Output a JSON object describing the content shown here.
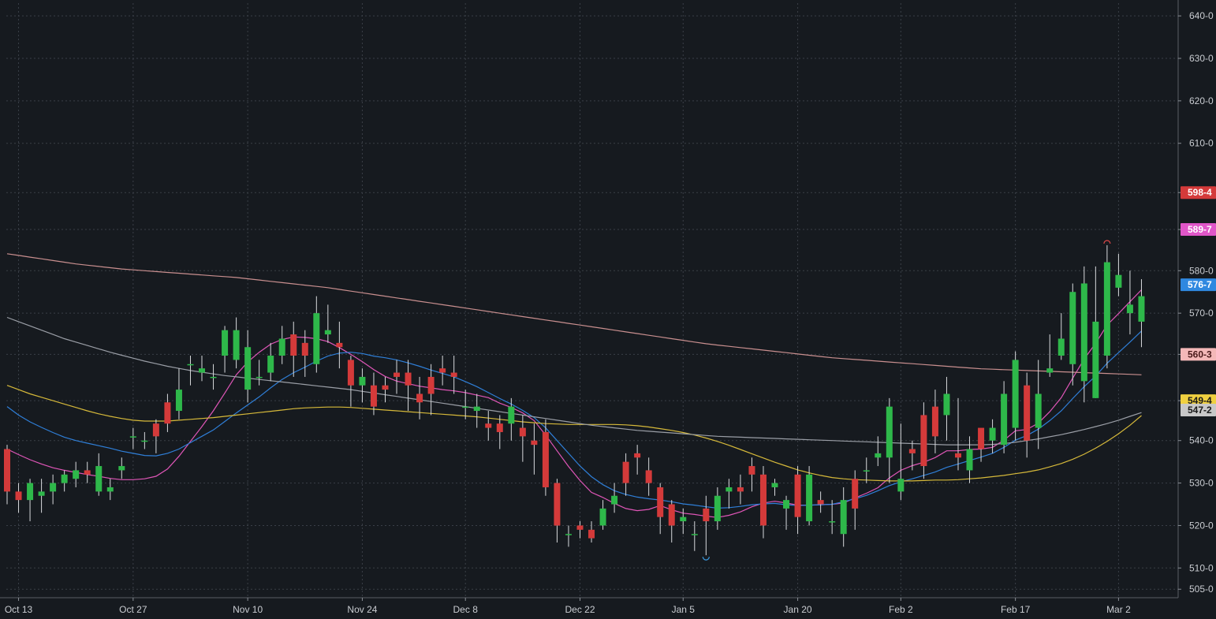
{
  "chart_data": {
    "type": "candlestick",
    "title": "",
    "xlabel": "",
    "ylabel": "",
    "grid": true,
    "x_ticks": [
      "Oct 13",
      "Oct 27",
      "Nov 10",
      "Nov 24",
      "Dec 8",
      "Dec 22",
      "Jan 5",
      "Jan 20",
      "Feb 2",
      "Feb 17",
      "Mar 2"
    ],
    "x_tick_index": [
      1,
      11,
      21,
      31,
      40,
      50,
      59,
      69,
      78,
      88,
      97
    ],
    "y_ticks": [
      "505-0",
      "510-0",
      "520-0",
      "530-0",
      "540-0",
      "549-4",
      "560-3",
      "570-0",
      "580-0",
      "589-7",
      "598-4",
      "610-0",
      "620-0",
      "630-0",
      "640-0"
    ],
    "ylim": [
      503,
      643
    ],
    "candles": {
      "open": [
        538,
        528,
        526,
        527,
        528,
        530,
        531,
        533,
        528,
        528,
        533,
        541,
        540,
        544,
        549,
        547,
        558,
        556,
        555,
        560,
        559,
        552,
        555,
        556,
        560,
        565,
        563,
        558,
        565,
        563,
        559,
        553,
        553,
        553,
        556,
        556,
        551,
        555,
        557,
        556,
        548,
        547,
        544,
        544,
        544,
        543,
        540,
        542,
        530,
        518,
        520,
        519,
        520,
        525,
        535,
        537,
        533,
        529,
        525,
        521,
        518,
        524,
        521,
        528,
        529,
        534,
        532,
        529,
        524,
        532,
        521,
        526,
        521,
        518,
        531,
        533,
        536,
        536,
        528,
        538,
        546,
        548,
        546,
        537,
        533,
        543,
        540,
        539,
        543,
        553,
        543,
        556,
        560,
        558,
        554,
        550,
        560,
        576,
        570,
        568
      ],
      "close": [
        528,
        526,
        530,
        528,
        530,
        532,
        533,
        532,
        534,
        529,
        534,
        541,
        540,
        541,
        544,
        552,
        558,
        557,
        555,
        566,
        566,
        562,
        555,
        560,
        564,
        560,
        560,
        570,
        566,
        562,
        553,
        555,
        548,
        552,
        555,
        553,
        549,
        551,
        556,
        555,
        548,
        548,
        543,
        542,
        548,
        541,
        539,
        529,
        520,
        518,
        519,
        517,
        524,
        527,
        530,
        536,
        530,
        522,
        520,
        522,
        518,
        521,
        527,
        529,
        528,
        532,
        520,
        530,
        526,
        522,
        532,
        525,
        521,
        526,
        524,
        533,
        537,
        548,
        531,
        537,
        534,
        541,
        551,
        536,
        538,
        538,
        543,
        551,
        559,
        540,
        551,
        557,
        564,
        575,
        577,
        568,
        582,
        579,
        572,
        574
      ],
      "high": [
        539,
        530,
        531,
        531,
        532,
        533,
        535,
        535,
        537,
        531,
        536,
        543,
        542,
        545,
        551,
        557,
        560,
        560,
        558,
        567,
        569,
        566,
        559,
        563,
        567,
        568,
        566,
        574,
        572,
        568,
        560,
        557,
        556,
        555,
        559,
        559,
        555,
        558,
        560,
        560,
        552,
        551,
        547,
        546,
        550,
        546,
        544,
        545,
        531,
        520,
        521,
        521,
        526,
        530,
        537,
        539,
        536,
        530,
        526,
        524,
        521,
        527,
        529,
        531,
        532,
        536,
        534,
        531,
        527,
        534,
        534,
        528,
        526,
        529,
        533,
        536,
        541,
        550,
        544,
        540,
        549,
        552,
        555,
        550,
        541,
        541,
        545,
        554,
        561,
        556,
        559,
        565,
        570,
        577,
        581,
        581,
        586,
        584,
        580,
        578
      ],
      "low": [
        525,
        523,
        521,
        523,
        525,
        528,
        529,
        530,
        527,
        526,
        531,
        538,
        538,
        537,
        542,
        545,
        553,
        554,
        552,
        556,
        557,
        549,
        553,
        554,
        558,
        555,
        555,
        556,
        563,
        557,
        548,
        549,
        546,
        549,
        551,
        547,
        545,
        546,
        553,
        551,
        545,
        543,
        540,
        538,
        540,
        535,
        532,
        527,
        516,
        515,
        517,
        516,
        519,
        523,
        527,
        532,
        527,
        518,
        516,
        518,
        514,
        513,
        519,
        524,
        525,
        528,
        517,
        527,
        519,
        518,
        520,
        523,
        518,
        515,
        519,
        530,
        534,
        530,
        526,
        533,
        531,
        537,
        540,
        533,
        530,
        535,
        537,
        537,
        540,
        536,
        538,
        555,
        559,
        553,
        549,
        550,
        557,
        574,
        565,
        562
      ]
    },
    "series": [
      {
        "name": "",
        "color": "#e056b8",
        "values": [
          538.0,
          536.7,
          535.5,
          534.5,
          533.6,
          533.0,
          532.5,
          532.0,
          531.6,
          531.1,
          530.8,
          530.8,
          531.0,
          531.6,
          533.3,
          536.3,
          539.8,
          543.3,
          547.0,
          551.2,
          555.5,
          558.5,
          560.8,
          562.7,
          563.8,
          564.4,
          564.3,
          564.0,
          563.3,
          561.9,
          560.3,
          558.6,
          556.7,
          555.1,
          554.0,
          553.4,
          552.8,
          552.4,
          552.0,
          551.7,
          551.3,
          550.7,
          550.1,
          548.8,
          547.8,
          546.5,
          544.7,
          541.3,
          537.6,
          533.9,
          530.6,
          527.8,
          526.6,
          525.2,
          524.0,
          523.5,
          523.8,
          524.7,
          523.7,
          522.9,
          522.6,
          522.2,
          521.9,
          522.4,
          523.2,
          524.4,
          525.3,
          525.7,
          525.3,
          524.8,
          524.8,
          524.9,
          525.0,
          525.3,
          526.5,
          527.6,
          528.9,
          531.2,
          533.0,
          534.1,
          534.9,
          536.0,
          537.6,
          537.6,
          537.9,
          538.0,
          538.4,
          540.1,
          542.3,
          542.6,
          544.1,
          546.8,
          550.1,
          554.7,
          559.2,
          562.9,
          567.2,
          569.9,
          572.7,
          575.5
        ]
      },
      {
        "name": "",
        "color": "#2f7fd8",
        "values": [
          548.0,
          546.0,
          544.4,
          543.1,
          541.9,
          540.8,
          540.0,
          539.4,
          538.8,
          538.2,
          537.5,
          537.0,
          536.5,
          536.4,
          537.0,
          538.0,
          539.5,
          541.0,
          542.5,
          544.5,
          546.5,
          548.4,
          550.3,
          552.4,
          554.4,
          556.0,
          557.3,
          558.7,
          559.9,
          560.6,
          560.8,
          560.5,
          559.9,
          559.5,
          559.0,
          558.3,
          557.5,
          556.6,
          555.8,
          555.0,
          553.9,
          552.7,
          551.3,
          549.9,
          548.6,
          547.1,
          545.4,
          543.0,
          540.0,
          537.0,
          534.0,
          531.5,
          529.6,
          528.2,
          527.3,
          526.7,
          526.3,
          526.0,
          525.6,
          525.1,
          524.8,
          524.4,
          524.1,
          524.2,
          524.5,
          524.9,
          525.1,
          525.2,
          524.9,
          524.7,
          524.8,
          524.9,
          525.0,
          525.6,
          526.3,
          527.1,
          528.2,
          529.4,
          530.3,
          531.0,
          531.8,
          532.6,
          533.7,
          534.5,
          535.3,
          536.1,
          537.0,
          538.4,
          540.1,
          541.2,
          542.7,
          544.7,
          547.0,
          549.9,
          552.7,
          555.2,
          558.2,
          560.7,
          563.2,
          565.8
        ]
      },
      {
        "name": "",
        "color": "#d6b93a",
        "values": [
          553.0,
          552.0,
          551.0,
          550.2,
          549.4,
          548.6,
          547.8,
          547.0,
          546.3,
          545.7,
          545.2,
          544.8,
          544.6,
          544.6,
          544.6,
          544.8,
          545.0,
          545.2,
          545.4,
          545.7,
          546.0,
          546.3,
          546.6,
          546.9,
          547.2,
          547.5,
          547.7,
          547.8,
          547.9,
          547.9,
          547.8,
          547.6,
          547.4,
          547.2,
          547.0,
          546.8,
          546.6,
          546.4,
          546.2,
          546.0,
          545.8,
          545.6,
          545.3,
          545.0,
          544.7,
          544.4,
          544.2,
          544.0,
          543.9,
          543.8,
          543.8,
          543.8,
          543.8,
          543.8,
          543.7,
          543.5,
          543.2,
          542.8,
          542.4,
          541.9,
          541.3,
          540.6,
          539.8,
          538.9,
          537.9,
          536.9,
          535.9,
          534.9,
          534.0,
          533.1,
          532.4,
          531.8,
          531.3,
          531.0,
          530.8,
          530.7,
          530.6,
          530.5,
          530.5,
          530.5,
          530.6,
          530.7,
          530.7,
          530.8,
          531.0,
          531.2,
          531.5,
          531.8,
          532.2,
          532.6,
          533.1,
          533.8,
          534.6,
          535.6,
          536.8,
          538.2,
          539.8,
          541.6,
          543.6,
          545.9
        ]
      },
      {
        "name": "",
        "color": "#9a9ea6",
        "values": [
          569.0,
          568.0,
          567.0,
          566.0,
          565.0,
          564.0,
          563.2,
          562.4,
          561.6,
          560.8,
          560.1,
          559.4,
          558.7,
          558.1,
          557.5,
          557.0,
          556.5,
          556.1,
          555.7,
          555.3,
          555.0,
          554.7,
          554.4,
          554.1,
          553.8,
          553.5,
          553.2,
          552.9,
          552.6,
          552.3,
          552.0,
          551.6,
          551.2,
          550.8,
          550.4,
          550.0,
          549.6,
          549.2,
          548.8,
          548.4,
          548.0,
          547.6,
          547.2,
          546.8,
          546.4,
          546.0,
          545.6,
          545.2,
          544.8,
          544.4,
          544.0,
          543.6,
          543.3,
          543.0,
          542.7,
          542.4,
          542.2,
          542.0,
          541.8,
          541.6,
          541.4,
          541.2,
          541.0,
          540.9,
          540.8,
          540.7,
          540.6,
          540.5,
          540.4,
          540.3,
          540.2,
          540.1,
          540.0,
          539.9,
          539.8,
          539.7,
          539.6,
          539.5,
          539.4,
          539.3,
          539.2,
          539.1,
          539.0,
          539.0,
          539.0,
          539.0,
          539.1,
          539.3,
          539.6,
          540.0,
          540.4,
          540.9,
          541.4,
          542.0,
          542.6,
          543.3,
          544.0,
          544.8,
          545.7,
          546.6
        ]
      },
      {
        "name": "",
        "color": "#c98f8f",
        "values": [
          584.0,
          583.6,
          583.2,
          582.8,
          582.4,
          582.0,
          581.6,
          581.3,
          581.0,
          580.7,
          580.4,
          580.2,
          580.0,
          579.8,
          579.6,
          579.4,
          579.2,
          579.0,
          578.8,
          578.6,
          578.4,
          578.1,
          577.8,
          577.5,
          577.2,
          576.9,
          576.6,
          576.3,
          576.0,
          575.6,
          575.2,
          574.8,
          574.4,
          574.0,
          573.6,
          573.2,
          572.8,
          572.4,
          572.0,
          571.6,
          571.2,
          570.8,
          570.4,
          570.0,
          569.6,
          569.2,
          568.8,
          568.4,
          568.0,
          567.6,
          567.2,
          566.8,
          566.4,
          566.0,
          565.6,
          565.2,
          564.8,
          564.4,
          564.0,
          563.6,
          563.2,
          562.8,
          562.5,
          562.2,
          561.9,
          561.6,
          561.3,
          561.0,
          560.7,
          560.4,
          560.1,
          559.8,
          559.5,
          559.3,
          559.1,
          558.9,
          558.7,
          558.5,
          558.3,
          558.1,
          557.9,
          557.7,
          557.5,
          557.3,
          557.1,
          556.9,
          556.8,
          556.7,
          556.6,
          556.5,
          556.4,
          556.3,
          556.2,
          556.1,
          556.0,
          555.9,
          555.8,
          555.7,
          555.6,
          555.5
        ]
      }
    ],
    "price_labels": [
      {
        "text": "598-4",
        "value": 598.4,
        "bg": "#d43a3a",
        "fg": "#ffffff"
      },
      {
        "text": "589-7",
        "value": 589.7,
        "bg": "#e056c8",
        "fg": "#ffffff"
      },
      {
        "text": "576-7",
        "value": 576.7,
        "bg": "#2f88e0",
        "fg": "#ffffff"
      },
      {
        "text": "560-3",
        "value": 560.3,
        "bg": "#f4b8b8",
        "fg": "#4a1a1a"
      },
      {
        "text": "549-4",
        "value": 549.4,
        "bg": "#f0d040",
        "fg": "#1a1a1a"
      },
      {
        "text": "547-2",
        "value": 547.2,
        "bg": "#c8c8c8",
        "fg": "#1a1a1a"
      }
    ],
    "colors": {
      "background": "#161a1f",
      "grid": "#3a3f47",
      "up": "#2eb84a",
      "down": "#d43a3a",
      "axis_text": "#c9ccd1"
    }
  }
}
